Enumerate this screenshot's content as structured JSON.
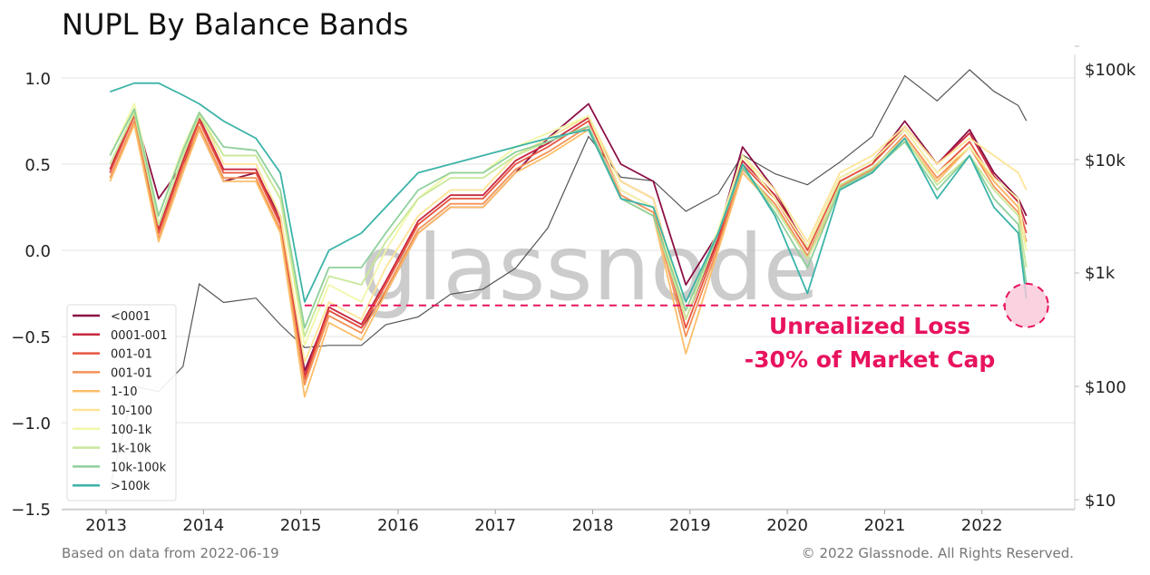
{
  "chart_data": {
    "type": "line",
    "title": "NUPL By Balance Bands",
    "footer_left": "Based on data from 2022-06-19",
    "footer_right": "© 2022 Glassnode. All Rights Reserved.",
    "watermark": "glassnode",
    "y_left": {
      "ylim": [
        -1.5,
        1.2
      ],
      "ticks": [
        1.0,
        0.5,
        0.0,
        -0.5,
        -1.0,
        -1.5
      ],
      "tick_labels": [
        "1.0",
        "0.5",
        "0.0",
        "−0.5",
        "−1.0",
        "−1.5"
      ]
    },
    "y_right": {
      "scale": "log",
      "ticks": [
        100000,
        10000,
        1000,
        100,
        10
      ],
      "tick_labels": [
        "$100k",
        "$10k",
        "$1k",
        "$100",
        "$10"
      ]
    },
    "x_ticks": [
      "2013",
      "2014",
      "2015",
      "2016",
      "2017",
      "2018",
      "2019",
      "2020",
      "2021",
      "2022"
    ],
    "grid": true,
    "legend_placement": "bottom-left",
    "x": [
      "2013-01",
      "2013-04",
      "2013-07",
      "2013-10",
      "2013-12",
      "2014-03",
      "2014-07",
      "2014-10",
      "2015-01",
      "2015-04",
      "2015-08",
      "2015-11",
      "2016-03",
      "2016-07",
      "2016-11",
      "2017-03",
      "2017-07",
      "2017-12",
      "2018-04",
      "2018-08",
      "2018-12",
      "2019-04",
      "2019-07",
      "2019-11",
      "2020-03",
      "2020-07",
      "2020-11",
      "2021-03",
      "2021-07",
      "2021-11",
      "2022-02",
      "2022-05",
      "2022-06"
    ],
    "series": [
      {
        "name": "<0001",
        "color": "#8b0f45",
        "values": [
          0.45,
          0.8,
          0.3,
          0.5,
          0.7,
          0.4,
          0.45,
          0.2,
          -0.7,
          -0.35,
          -0.45,
          -0.25,
          0.1,
          0.25,
          0.25,
          0.45,
          0.65,
          0.85,
          0.5,
          0.4,
          -0.2,
          0.1,
          0.6,
          0.35,
          0.0,
          0.4,
          0.5,
          0.75,
          0.5,
          0.7,
          0.45,
          0.3,
          0.2
        ]
      },
      {
        "name": "0001-001",
        "color": "#c8283f",
        "values": [
          0.47,
          0.8,
          0.12,
          0.52,
          0.77,
          0.47,
          0.47,
          0.17,
          -0.73,
          -0.33,
          -0.43,
          -0.18,
          0.17,
          0.32,
          0.32,
          0.52,
          0.62,
          0.77,
          0.4,
          0.3,
          -0.4,
          0.07,
          0.52,
          0.32,
          0.02,
          0.42,
          0.52,
          0.72,
          0.5,
          0.68,
          0.43,
          0.28,
          0.15
        ]
      },
      {
        "name": "001-01",
        "color": "#e8553f",
        "values": [
          0.45,
          0.78,
          0.1,
          0.5,
          0.75,
          0.45,
          0.45,
          0.15,
          -0.75,
          -0.35,
          -0.45,
          -0.2,
          0.15,
          0.3,
          0.3,
          0.5,
          0.6,
          0.75,
          0.35,
          0.25,
          -0.45,
          0.05,
          0.5,
          0.3,
          0.0,
          0.4,
          0.5,
          0.7,
          0.45,
          0.63,
          0.4,
          0.25,
          0.1
        ]
      },
      {
        "name": "001-01",
        "color": "#f39256",
        "values": [
          0.42,
          0.75,
          0.07,
          0.47,
          0.72,
          0.42,
          0.42,
          0.12,
          -0.78,
          -0.38,
          -0.48,
          -0.23,
          0.12,
          0.27,
          0.27,
          0.47,
          0.57,
          0.72,
          0.32,
          0.22,
          -0.5,
          0.02,
          0.47,
          0.27,
          -0.03,
          0.37,
          0.47,
          0.67,
          0.42,
          0.6,
          0.37,
          0.22,
          0.05
        ]
      },
      {
        "name": "1-10",
        "color": "#fbbe6a",
        "values": [
          0.4,
          0.73,
          0.05,
          0.45,
          0.7,
          0.4,
          0.4,
          0.1,
          -0.85,
          -0.42,
          -0.52,
          -0.25,
          0.1,
          0.25,
          0.25,
          0.45,
          0.55,
          0.7,
          0.3,
          0.2,
          -0.6,
          0.0,
          0.45,
          0.25,
          -0.05,
          0.35,
          0.45,
          0.65,
          0.4,
          0.6,
          0.4,
          0.25,
          0.0
        ]
      },
      {
        "name": "10-100",
        "color": "#fde497",
        "values": [
          0.5,
          0.8,
          0.15,
          0.55,
          0.8,
          0.5,
          0.5,
          0.2,
          -0.65,
          -0.3,
          -0.4,
          -0.1,
          0.2,
          0.35,
          0.35,
          0.55,
          0.65,
          0.78,
          0.4,
          0.3,
          -0.4,
          0.1,
          0.55,
          0.35,
          0.05,
          0.45,
          0.55,
          0.72,
          0.5,
          0.65,
          0.55,
          0.45,
          0.35
        ]
      },
      {
        "name": "100-1k",
        "color": "#f2f7a8",
        "values": [
          0.55,
          0.85,
          0.2,
          0.6,
          0.8,
          0.55,
          0.55,
          0.3,
          -0.55,
          -0.2,
          -0.3,
          0.0,
          0.3,
          0.45,
          0.45,
          0.6,
          0.68,
          0.78,
          0.35,
          0.25,
          -0.35,
          0.12,
          0.55,
          0.3,
          0.02,
          0.42,
          0.52,
          0.7,
          0.45,
          0.6,
          0.42,
          0.3,
          0.0
        ]
      },
      {
        "name": "1k-10k",
        "color": "#c8e89a",
        "values": [
          0.5,
          0.8,
          0.15,
          0.55,
          0.78,
          0.55,
          0.55,
          0.3,
          -0.5,
          -0.15,
          -0.2,
          0.05,
          0.3,
          0.42,
          0.42,
          0.55,
          0.63,
          0.72,
          0.3,
          0.2,
          -0.4,
          0.1,
          0.48,
          0.25,
          -0.05,
          0.38,
          0.48,
          0.65,
          0.38,
          0.55,
          0.35,
          0.2,
          -0.1
        ]
      },
      {
        "name": "10k-100k",
        "color": "#8fd09b",
        "values": [
          0.55,
          0.82,
          0.2,
          0.58,
          0.8,
          0.6,
          0.58,
          0.35,
          -0.45,
          -0.1,
          -0.1,
          0.1,
          0.35,
          0.45,
          0.45,
          0.57,
          0.63,
          0.72,
          0.3,
          0.2,
          -0.35,
          0.1,
          0.48,
          0.22,
          -0.1,
          0.36,
          0.46,
          0.63,
          0.35,
          0.55,
          0.3,
          0.15,
          -0.2
        ]
      },
      {
        "name": ">100k",
        "color": "#3bb3a8",
        "values": [
          0.92,
          0.97,
          0.97,
          0.9,
          0.85,
          0.75,
          0.65,
          0.45,
          -0.3,
          0.0,
          0.1,
          0.25,
          0.45,
          0.5,
          0.55,
          0.6,
          0.65,
          0.7,
          0.3,
          0.25,
          -0.3,
          0.1,
          0.5,
          0.2,
          -0.25,
          0.35,
          0.45,
          0.65,
          0.3,
          0.55,
          0.25,
          0.1,
          -0.28
        ]
      }
    ],
    "price": {
      "color": "#555555",
      "values": [
        13,
        100,
        90,
        150,
        800,
        550,
        600,
        350,
        220,
        230,
        230,
        350,
        410,
        650,
        720,
        1100,
        2500,
        16000,
        7000,
        6500,
        3500,
        5000,
        11000,
        7500,
        6000,
        9500,
        16000,
        55000,
        33000,
        62000,
        40000,
        30000,
        22000
      ]
    },
    "annotation": {
      "line1": "Unrealized Loss",
      "line2": "-30% of Market Cap",
      "level": -0.32,
      "from": "2015-01",
      "to": "2022-06",
      "color": "#e8135f"
    }
  }
}
